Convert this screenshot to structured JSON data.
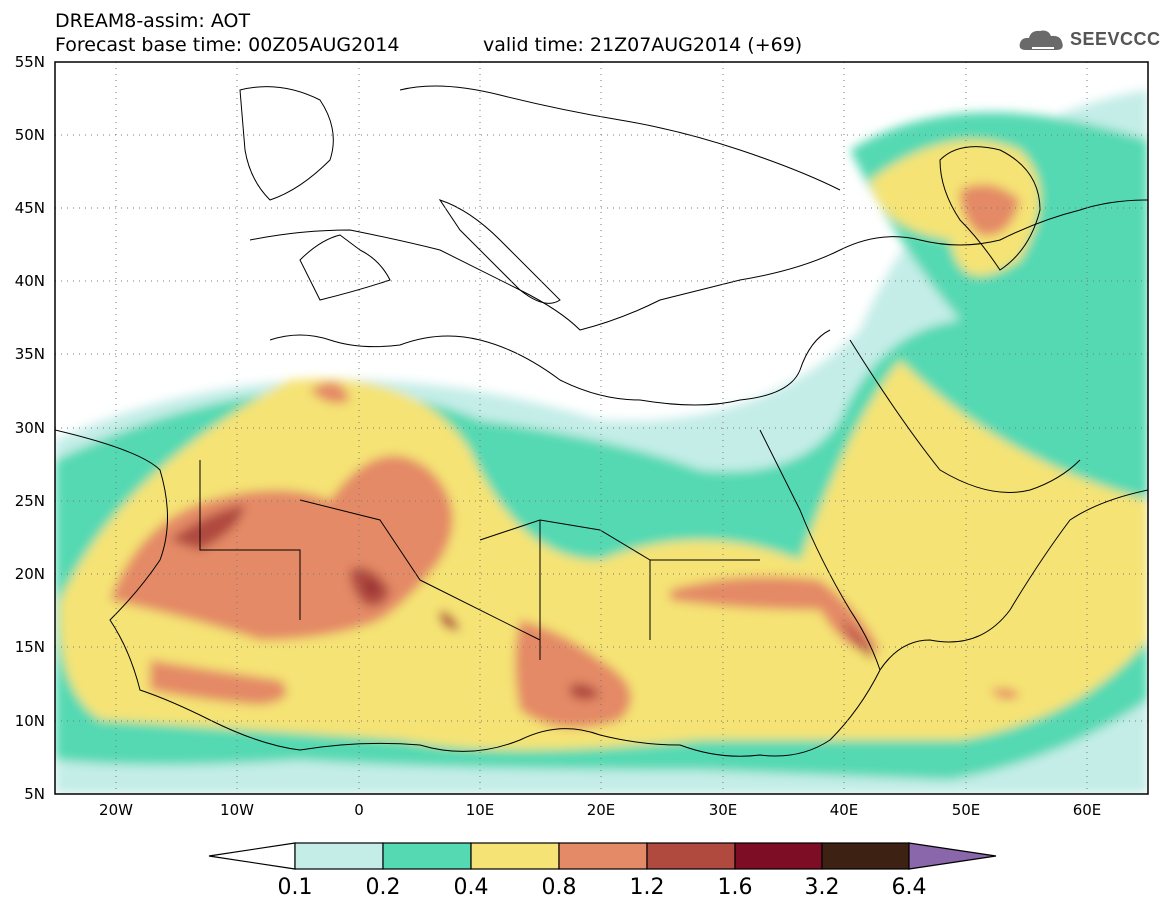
{
  "header": {
    "title": "DREAM8-assim: AOT",
    "base_time": "Forecast base time: 00Z05AUG2014",
    "valid_time": "valid time: 21Z07AUG2014 (+69)"
  },
  "logo": {
    "text": "SEEVCCC",
    "icon": "cloud-icon"
  },
  "map": {
    "variable": "AOT",
    "lat_range": [
      5,
      55
    ],
    "lon_range": [
      -25,
      65
    ],
    "lat_ticks": [
      "55N",
      "50N",
      "45N",
      "40N",
      "35N",
      "30N",
      "25N",
      "20N",
      "15N",
      "10N",
      "5N"
    ],
    "lon_ticks": [
      "20W",
      "10W",
      "0",
      "10E",
      "20E",
      "30E",
      "40E",
      "50E",
      "60E"
    ],
    "grid": "dotted"
  },
  "colorbar": {
    "levels": [
      "0.1",
      "0.2",
      "0.4",
      "0.8",
      "1.2",
      "1.6",
      "3.2",
      "6.4"
    ],
    "colors": [
      "#ffffff",
      "#c4ede8",
      "#55d9b2",
      "#f5e375",
      "#e48a66",
      "#b04a3f",
      "#7d0c25",
      "#3d2214",
      "#8a66aa"
    ]
  }
}
